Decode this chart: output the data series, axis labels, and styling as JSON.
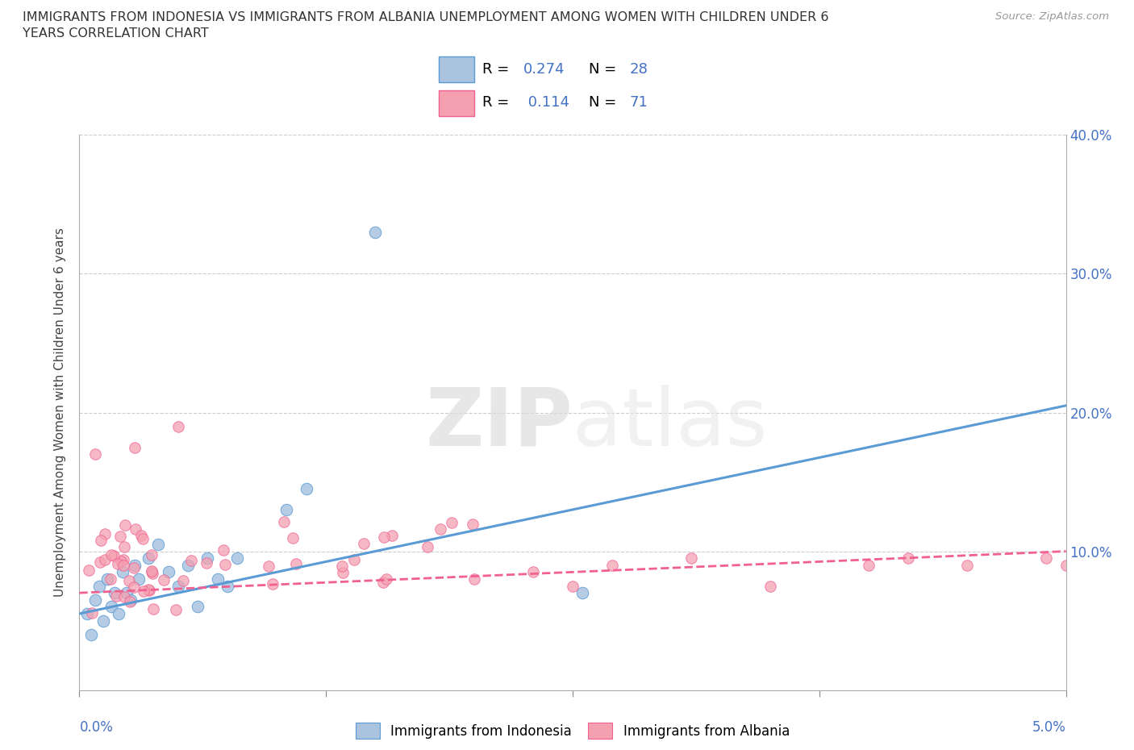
{
  "title_line1": "IMMIGRANTS FROM INDONESIA VS IMMIGRANTS FROM ALBANIA UNEMPLOYMENT AMONG WOMEN WITH CHILDREN UNDER 6",
  "title_line2": "YEARS CORRELATION CHART",
  "source": "Source: ZipAtlas.com",
  "ylabel": "Unemployment Among Women with Children Under 6 years",
  "indonesia_color": "#aac4e0",
  "albania_color": "#f4a0b0",
  "indonesia_label": "Immigrants from Indonesia",
  "albania_label": "Immigrants from Albania",
  "r_indonesia": "0.274",
  "n_indonesia": "28",
  "r_albania": "0.114",
  "n_albania": "71",
  "watermark_zip": "ZIP",
  "watermark_atlas": "atlas",
  "background_color": "#ffffff",
  "trend_color_indonesia": "#5b9bd5",
  "trend_color_albania": "#f06090",
  "indo_trend_intercept": 5.5,
  "indo_trend_slope": 3.0,
  "alb_trend_intercept": 7.0,
  "alb_trend_slope": 0.6,
  "xlim": [
    0.0,
    5.0
  ],
  "ylim": [
    0.0,
    40.0
  ]
}
